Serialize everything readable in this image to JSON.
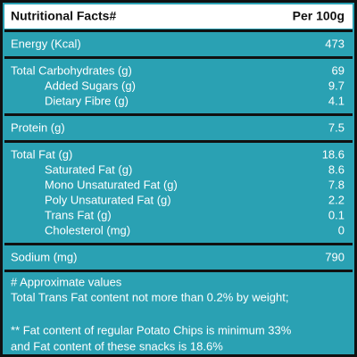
{
  "header": {
    "title": "Nutritional Facts#",
    "per": "Per 100g"
  },
  "groups": [
    [
      {
        "label": "Energy (Kcal)",
        "value": 473
      }
    ],
    [
      {
        "label": "Total Carbohydrates (g)",
        "value": 69
      },
      {
        "label": "Added Sugars (g)",
        "value": 9.7
      },
      {
        "label": "Dietary Fibre (g)",
        "value": 4.1
      }
    ],
    [
      {
        "label": "Protein (g)",
        "value": 7.5
      }
    ],
    [
      {
        "label": "Total Fat (g)",
        "value": 18.6
      },
      {
        "label": "Saturated Fat (g)",
        "value": 8.6
      },
      {
        "label": "Mono Unsaturated Fat (g)",
        "value": 7.8
      },
      {
        "label": "Poly Unsaturated Fat (g)",
        "value": 2.2
      },
      {
        "label": "Trans Fat (g)",
        "value": 0.1
      },
      {
        "label": "Cholesterol (mg)",
        "value": 0
      }
    ],
    [
      {
        "label": "Sodium (mg)",
        "value": 790
      }
    ]
  ],
  "notes": [
    "# Approximate values",
    "Total Trans Fat content not more than 0.2% by weight;"
  ],
  "footnotes": [
    "** Fat content of regular Potato Chips is minimum 33%",
    "and Fat content of these snacks is 18.6%"
  ]
}
